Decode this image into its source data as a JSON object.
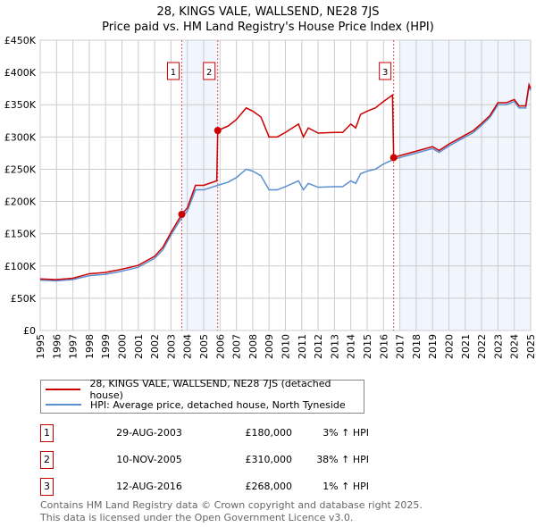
{
  "chart_data": {
    "type": "line",
    "title": "28, KINGS VALE, WALLSEND, NE28 7JS",
    "subtitle": "Price paid vs. HM Land Registry's House Price Index (HPI)",
    "xlim": [
      1995,
      2025
    ],
    "ylim": [
      0,
      450000
    ],
    "x_ticks": [
      "1995",
      "1996",
      "1997",
      "1998",
      "1999",
      "2000",
      "2001",
      "2002",
      "2003",
      "2004",
      "2005",
      "2006",
      "2007",
      "2008",
      "2009",
      "2010",
      "2011",
      "2012",
      "2013",
      "2014",
      "2015",
      "2016",
      "2017",
      "2018",
      "2019",
      "2020",
      "2021",
      "2022",
      "2023",
      "2024",
      "2025"
    ],
    "y_ticks": [
      {
        "v": 0,
        "l": "£0"
      },
      {
        "v": 50000,
        "l": "£50K"
      },
      {
        "v": 100000,
        "l": "£100K"
      },
      {
        "v": 150000,
        "l": "£150K"
      },
      {
        "v": 200000,
        "l": "£200K"
      },
      {
        "v": 250000,
        "l": "£250K"
      },
      {
        "v": 300000,
        "l": "£300K"
      },
      {
        "v": 350000,
        "l": "£350K"
      },
      {
        "v": 400000,
        "l": "£400K"
      },
      {
        "v": 450000,
        "l": "£450K"
      }
    ],
    "grid": true,
    "shaded_ranges": [
      [
        2003.66,
        2005.86
      ],
      [
        2017.0,
        2025
      ]
    ],
    "series": [
      {
        "name": "28, KINGS VALE, WALLSEND, NE28 7JS (detached house)",
        "color": "#cc0000",
        "points": [
          [
            1995,
            80
          ],
          [
            1996,
            79
          ],
          [
            1997,
            81
          ],
          [
            1998,
            88
          ],
          [
            1999,
            90
          ],
          [
            2000,
            95
          ],
          [
            2001,
            101
          ],
          [
            2002,
            115
          ],
          [
            2002.5,
            129
          ],
          [
            2003,
            152
          ],
          [
            2003.66,
            180
          ],
          [
            2004,
            190
          ],
          [
            2004.5,
            225
          ],
          [
            2005,
            225
          ],
          [
            2005.8,
            232
          ],
          [
            2005.86,
            310
          ],
          [
            2006.5,
            317
          ],
          [
            2007,
            327
          ],
          [
            2007.6,
            345
          ],
          [
            2008,
            340
          ],
          [
            2008.5,
            331
          ],
          [
            2009,
            300
          ],
          [
            2009.5,
            300
          ],
          [
            2010,
            307
          ],
          [
            2010.8,
            320
          ],
          [
            2011.1,
            300
          ],
          [
            2011.4,
            314
          ],
          [
            2012,
            306
          ],
          [
            2013,
            307
          ],
          [
            2013.5,
            307
          ],
          [
            2014,
            320
          ],
          [
            2014.3,
            314
          ],
          [
            2014.6,
            335
          ],
          [
            2015,
            340
          ],
          [
            2015.5,
            345
          ],
          [
            2016,
            355
          ],
          [
            2016.55,
            365
          ],
          [
            2016.62,
            268
          ],
          [
            2017,
            271
          ],
          [
            2018,
            278
          ],
          [
            2019,
            285
          ],
          [
            2019.4,
            279
          ],
          [
            2020,
            289
          ],
          [
            2021,
            303
          ],
          [
            2021.5,
            310
          ],
          [
            2022,
            321
          ],
          [
            2022.5,
            333
          ],
          [
            2023,
            353
          ],
          [
            2023.5,
            353
          ],
          [
            2024,
            358
          ],
          [
            2024.3,
            348
          ],
          [
            2024.7,
            348
          ],
          [
            2024.9,
            381
          ],
          [
            2025,
            375
          ]
        ]
      },
      {
        "name": "HPI: Average price, detached house, North Tyneside",
        "color": "#5b8fd0",
        "points": [
          [
            1995,
            78
          ],
          [
            1996,
            77
          ],
          [
            1997,
            79
          ],
          [
            1998,
            85
          ],
          [
            1999,
            87
          ],
          [
            2000,
            92
          ],
          [
            2001,
            98
          ],
          [
            2002,
            112
          ],
          [
            2002.5,
            125
          ],
          [
            2003,
            148
          ],
          [
            2003.66,
            175
          ],
          [
            2004,
            185
          ],
          [
            2004.5,
            218
          ],
          [
            2005,
            218
          ],
          [
            2005.86,
            225
          ],
          [
            2006.5,
            230
          ],
          [
            2007,
            237
          ],
          [
            2007.6,
            250
          ],
          [
            2008,
            247
          ],
          [
            2008.5,
            240
          ],
          [
            2009,
            218
          ],
          [
            2009.5,
            218
          ],
          [
            2010,
            223
          ],
          [
            2010.8,
            232
          ],
          [
            2011.1,
            218
          ],
          [
            2011.4,
            228
          ],
          [
            2012,
            222
          ],
          [
            2013,
            223
          ],
          [
            2013.5,
            223
          ],
          [
            2014,
            232
          ],
          [
            2014.3,
            228
          ],
          [
            2014.6,
            243
          ],
          [
            2015,
            247
          ],
          [
            2015.5,
            250
          ],
          [
            2016,
            258
          ],
          [
            2016.6,
            265
          ],
          [
            2017,
            268
          ],
          [
            2018,
            275
          ],
          [
            2019,
            282
          ],
          [
            2019.4,
            276
          ],
          [
            2020,
            286
          ],
          [
            2021,
            300
          ],
          [
            2021.5,
            307
          ],
          [
            2022,
            318
          ],
          [
            2022.5,
            330
          ],
          [
            2023,
            350
          ],
          [
            2023.5,
            350
          ],
          [
            2024,
            355
          ],
          [
            2024.3,
            345
          ],
          [
            2024.7,
            345
          ],
          [
            2024.9,
            378
          ],
          [
            2025,
            372
          ]
        ]
      }
    ],
    "sales": [
      {
        "n": "1",
        "x": 2003.66,
        "y": 180000,
        "date": "29-AUG-2003",
        "price": "£180,000",
        "hpi": "3% ↑ HPI"
      },
      {
        "n": "2",
        "x": 2005.86,
        "y": 310000,
        "date": "10-NOV-2005",
        "price": "£310,000",
        "hpi": "38% ↑ HPI"
      },
      {
        "n": "3",
        "x": 2016.62,
        "y": 268000,
        "date": "12-AUG-2016",
        "price": "£268,000",
        "hpi": "1% ↑ HPI"
      }
    ],
    "legend_position": "bottom"
  },
  "footer": {
    "line1": "Contains HM Land Registry data © Crown copyright and database right 2025.",
    "line2": "This data is licensed under the Open Government Licence v3.0."
  }
}
